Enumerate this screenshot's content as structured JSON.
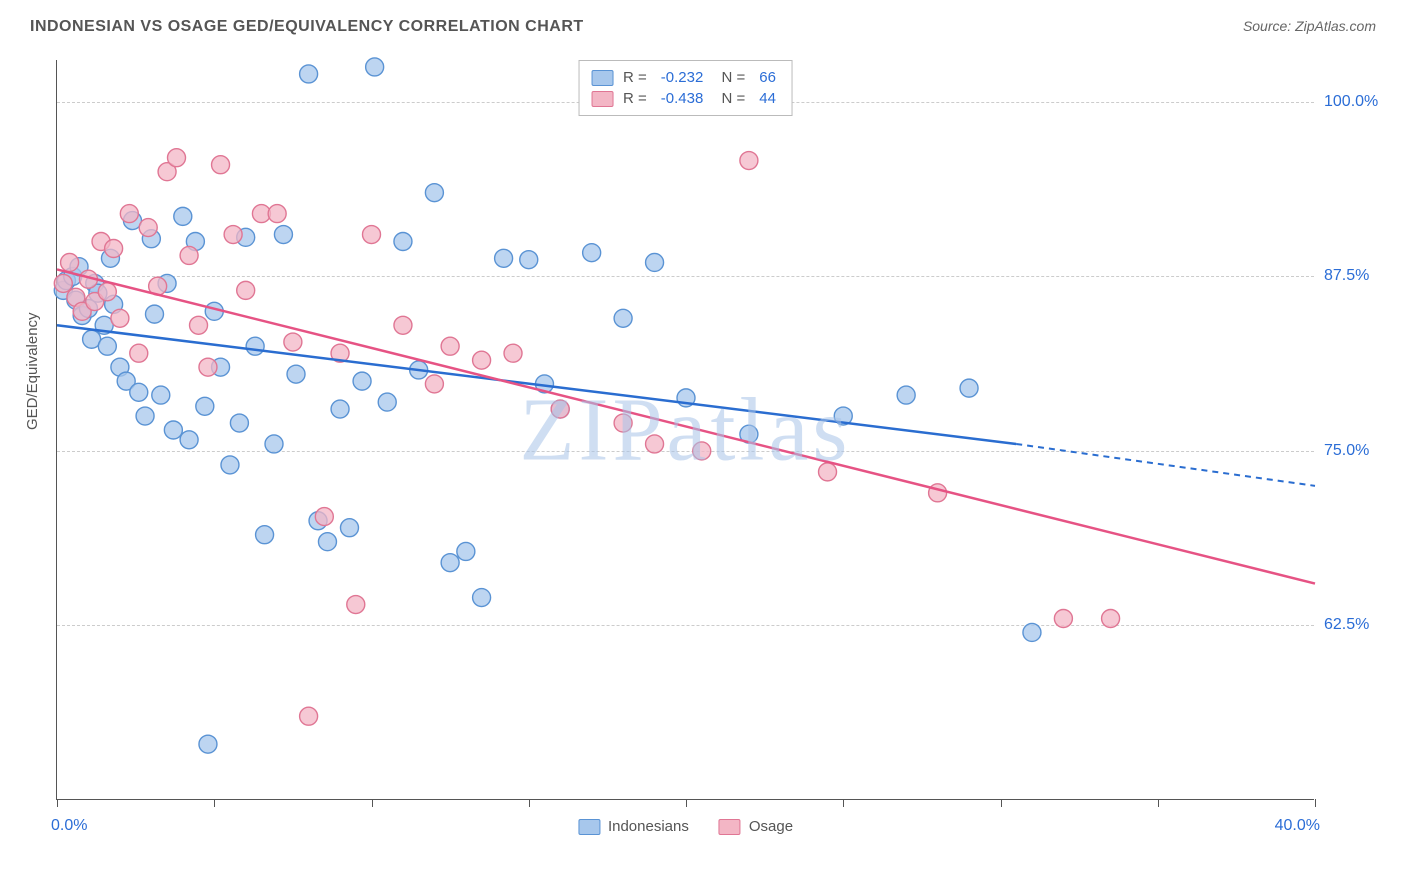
{
  "title": "INDONESIAN VS OSAGE GED/EQUIVALENCY CORRELATION CHART",
  "source_label": "Source: ZipAtlas.com",
  "watermark": "ZIPatlas",
  "y_axis_title": "GED/Equivalency",
  "chart": {
    "type": "scatter",
    "x_domain": [
      0,
      40
    ],
    "y_domain": [
      50,
      103
    ],
    "x_ticks": [
      0,
      5,
      10,
      15,
      20,
      25,
      30,
      35,
      40
    ],
    "y_grid": [
      62.5,
      75.0,
      87.5,
      100.0
    ],
    "y_labels": [
      "62.5%",
      "75.0%",
      "87.5%",
      "100.0%"
    ],
    "x_label_min": "0.0%",
    "x_label_max": "40.0%",
    "background_color": "#ffffff",
    "grid_color": "#cccccc",
    "axis_color": "#555555",
    "series": [
      {
        "name": "Indonesians",
        "fill": "#a7c7ec",
        "stroke": "#5a93d4",
        "marker_radius": 9,
        "marker_opacity": 0.75,
        "r_value": "-0.232",
        "n_value": "66",
        "points": [
          [
            0.2,
            86.5
          ],
          [
            0.3,
            87.2
          ],
          [
            0.5,
            87.5
          ],
          [
            0.6,
            85.8
          ],
          [
            0.7,
            88.2
          ],
          [
            0.8,
            84.7
          ],
          [
            1.0,
            85.2
          ],
          [
            1.1,
            83.0
          ],
          [
            1.2,
            87.0
          ],
          [
            1.3,
            86.3
          ],
          [
            1.5,
            84.0
          ],
          [
            1.6,
            82.5
          ],
          [
            1.7,
            88.8
          ],
          [
            1.8,
            85.5
          ],
          [
            2.0,
            81.0
          ],
          [
            2.2,
            80.0
          ],
          [
            2.4,
            91.5
          ],
          [
            2.6,
            79.2
          ],
          [
            2.8,
            77.5
          ],
          [
            3.0,
            90.2
          ],
          [
            3.1,
            84.8
          ],
          [
            3.3,
            79.0
          ],
          [
            3.5,
            87.0
          ],
          [
            3.7,
            76.5
          ],
          [
            4.0,
            91.8
          ],
          [
            4.2,
            75.8
          ],
          [
            4.4,
            90.0
          ],
          [
            4.7,
            78.2
          ],
          [
            5.0,
            85.0
          ],
          [
            5.2,
            81.0
          ],
          [
            5.5,
            74.0
          ],
          [
            5.8,
            77.0
          ],
          [
            6.0,
            90.3
          ],
          [
            6.3,
            82.5
          ],
          [
            6.6,
            69.0
          ],
          [
            6.9,
            75.5
          ],
          [
            7.2,
            90.5
          ],
          [
            7.6,
            80.5
          ],
          [
            8.0,
            102.0
          ],
          [
            8.3,
            70.0
          ],
          [
            8.6,
            68.5
          ],
          [
            9.0,
            78.0
          ],
          [
            9.3,
            69.5
          ],
          [
            9.7,
            80.0
          ],
          [
            10.1,
            102.5
          ],
          [
            10.5,
            78.5
          ],
          [
            11.0,
            90.0
          ],
          [
            11.5,
            80.8
          ],
          [
            12.0,
            93.5
          ],
          [
            12.5,
            67.0
          ],
          [
            13.0,
            67.8
          ],
          [
            13.5,
            64.5
          ],
          [
            14.2,
            88.8
          ],
          [
            15.0,
            88.7
          ],
          [
            15.5,
            79.8
          ],
          [
            16.0,
            78.0
          ],
          [
            17.0,
            89.2
          ],
          [
            18.0,
            84.5
          ],
          [
            19.0,
            88.5
          ],
          [
            20.0,
            78.8
          ],
          [
            22.0,
            76.2
          ],
          [
            25.0,
            77.5
          ],
          [
            27.0,
            79.0
          ],
          [
            29.0,
            79.5
          ],
          [
            31.0,
            62.0
          ],
          [
            4.8,
            54.0
          ]
        ],
        "trend": {
          "x1": 0,
          "y1": 84.0,
          "x2": 30.5,
          "y2": 75.5,
          "color": "#2a6dd0",
          "width": 2.5
        },
        "trend_ext": {
          "x1": 30.5,
          "y1": 75.5,
          "x2": 40,
          "y2": 72.5,
          "color": "#2a6dd0",
          "dash": "6,5"
        }
      },
      {
        "name": "Osage",
        "fill": "#f3b6c5",
        "stroke": "#e07694",
        "marker_radius": 9,
        "marker_opacity": 0.75,
        "r_value": "-0.438",
        "n_value": "44",
        "points": [
          [
            0.2,
            87.0
          ],
          [
            0.4,
            88.5
          ],
          [
            0.6,
            86.0
          ],
          [
            0.8,
            85.0
          ],
          [
            1.0,
            87.3
          ],
          [
            1.2,
            85.7
          ],
          [
            1.4,
            90.0
          ],
          [
            1.6,
            86.4
          ],
          [
            1.8,
            89.5
          ],
          [
            2.0,
            84.5
          ],
          [
            2.3,
            92.0
          ],
          [
            2.6,
            82.0
          ],
          [
            2.9,
            91.0
          ],
          [
            3.2,
            86.8
          ],
          [
            3.5,
            95.0
          ],
          [
            3.8,
            96.0
          ],
          [
            4.2,
            89.0
          ],
          [
            4.5,
            84.0
          ],
          [
            4.8,
            81.0
          ],
          [
            5.2,
            95.5
          ],
          [
            5.6,
            90.5
          ],
          [
            6.0,
            86.5
          ],
          [
            6.5,
            92.0
          ],
          [
            7.0,
            92.0
          ],
          [
            7.5,
            82.8
          ],
          [
            8.0,
            56.0
          ],
          [
            8.5,
            70.3
          ],
          [
            9.0,
            82.0
          ],
          [
            9.5,
            64.0
          ],
          [
            10.0,
            90.5
          ],
          [
            11.0,
            84.0
          ],
          [
            12.0,
            79.8
          ],
          [
            12.5,
            82.5
          ],
          [
            13.5,
            81.5
          ],
          [
            14.5,
            82.0
          ],
          [
            16.0,
            78.0
          ],
          [
            18.0,
            77.0
          ],
          [
            19.0,
            75.5
          ],
          [
            20.5,
            75.0
          ],
          [
            22.0,
            95.8
          ],
          [
            24.5,
            73.5
          ],
          [
            28.0,
            72.0
          ],
          [
            32.0,
            63.0
          ],
          [
            33.5,
            63.0
          ]
        ],
        "trend": {
          "x1": 0,
          "y1": 88.0,
          "x2": 40,
          "y2": 65.5,
          "color": "#e65384",
          "width": 2.5
        }
      }
    ]
  },
  "legend_bottom": [
    {
      "label": "Indonesians",
      "fill": "#a7c7ec",
      "stroke": "#5a93d4"
    },
    {
      "label": "Osage",
      "fill": "#f3b6c5",
      "stroke": "#e07694"
    }
  ]
}
